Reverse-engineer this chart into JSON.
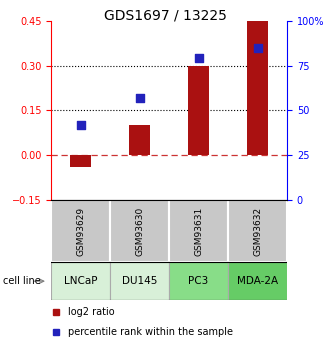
{
  "title": "GDS1697 / 13225",
  "samples": [
    "GSM93629",
    "GSM93630",
    "GSM93631",
    "GSM93632"
  ],
  "cell_lines": [
    "LNCaP",
    "DU145",
    "PC3",
    "MDA-2A"
  ],
  "log2_ratio": [
    -0.04,
    0.1,
    0.3,
    0.45
  ],
  "percentile_rank": [
    42,
    57,
    79,
    85
  ],
  "bar_color": "#aa1111",
  "dot_color": "#2222bb",
  "left_ylim": [
    -0.15,
    0.45
  ],
  "right_ylim": [
    0,
    100
  ],
  "left_yticks": [
    -0.15,
    0,
    0.15,
    0.3,
    0.45
  ],
  "right_yticks": [
    0,
    25,
    50,
    75,
    100
  ],
  "hline_positions": [
    0.15,
    0.3
  ],
  "dashed_hline_y": 0.0,
  "bar_width": 0.35,
  "dot_size": 35,
  "gsm_label_fontsize": 6.5,
  "cell_line_fontsize": 7.5,
  "title_fontsize": 10,
  "legend_fontsize": 7,
  "gsm_row_color": "#c8c8c8",
  "cell_line_row_colors": [
    "#d8f0d8",
    "#d8f0d8",
    "#88dd88",
    "#66cc66"
  ],
  "cell_line_edge_color": "#aaaaaa"
}
